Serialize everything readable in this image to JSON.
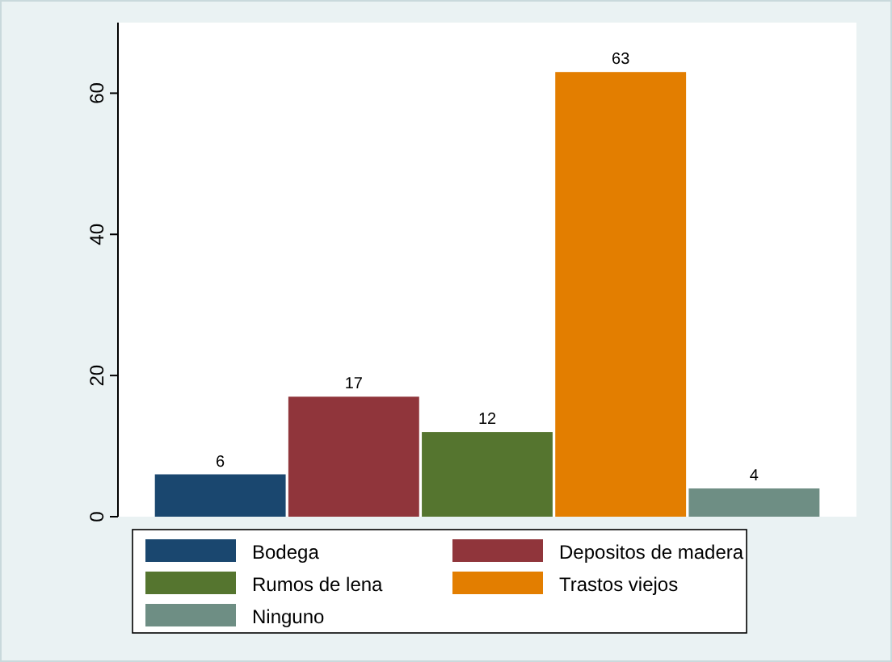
{
  "chart_data": {
    "type": "bar",
    "categories": [
      null
    ],
    "series": [
      {
        "name": "Bodega",
        "color": "#1a476f",
        "values": [
          6
        ]
      },
      {
        "name": "Depositos de madera",
        "color": "#90353b",
        "values": [
          17
        ]
      },
      {
        "name": "Rumos de lena",
        "color": "#55752f",
        "values": [
          12
        ]
      },
      {
        "name": "Trastos viejos",
        "color": "#e37e00",
        "values": [
          63
        ]
      },
      {
        "name": "Ninguno",
        "color": "#6e8e84",
        "values": [
          4
        ]
      }
    ],
    "ylim": [
      0,
      70
    ],
    "yticks": [
      0,
      20,
      40,
      60
    ],
    "data_labels": true,
    "legend": "bottom",
    "grid": false
  }
}
